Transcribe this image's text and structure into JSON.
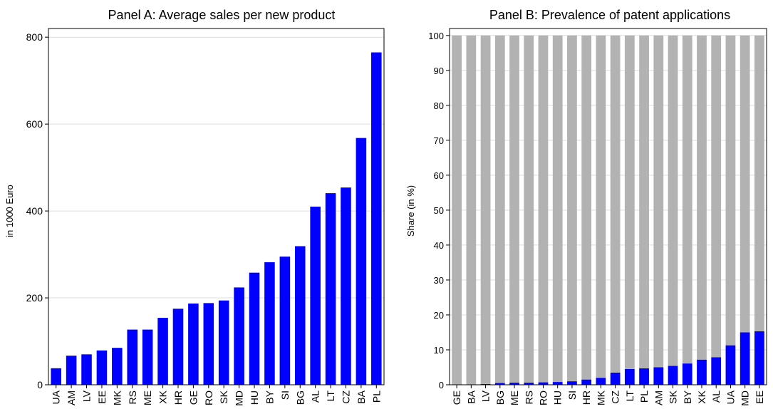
{
  "colors": {
    "bar": "#0000ff",
    "background_bar": "#b2b2b2",
    "grid": "#dedede",
    "axis": "#000000"
  },
  "chart_data": [
    {
      "type": "bar",
      "title": "Panel A: Average sales per new product",
      "xlabel": "",
      "ylabel": "in 1000 Euro",
      "ylim": [
        0,
        820
      ],
      "yticks": [
        0,
        200,
        400,
        600,
        800
      ],
      "grid": true,
      "categories": [
        "UA",
        "AM",
        "LV",
        "EE",
        "MK",
        "RS",
        "ME",
        "XK",
        "HR",
        "GE",
        "RO",
        "SK",
        "MD",
        "HU",
        "BY",
        "SI",
        "BG",
        "AL",
        "LT",
        "CZ",
        "BA",
        "PL"
      ],
      "values": [
        38,
        67,
        70,
        79,
        85,
        127,
        127,
        154,
        175,
        187,
        188,
        194,
        224,
        258,
        282,
        295,
        319,
        410,
        441,
        454,
        568,
        765
      ]
    },
    {
      "type": "bar",
      "title": "Panel B: Prevalence of patent applications",
      "xlabel": "",
      "ylabel": "Share (in %)",
      "ylim": [
        0,
        102
      ],
      "yticks": [
        0,
        10,
        20,
        30,
        40,
        50,
        60,
        70,
        80,
        90,
        100
      ],
      "grid": true,
      "stacked": true,
      "categories": [
        "GE",
        "BA",
        "LV",
        "BG",
        "ME",
        "RS",
        "RO",
        "HU",
        "SI",
        "HR",
        "MK",
        "CZ",
        "LT",
        "PL",
        "AM",
        "SK",
        "BY",
        "XK",
        "AL",
        "UA",
        "MD",
        "EE"
      ],
      "series": [
        {
          "values": [
            0.1,
            0.1,
            0.2,
            0.5,
            0.6,
            0.6,
            0.7,
            0.8,
            1.0,
            1.5,
            2.0,
            3.5,
            4.5,
            4.7,
            5.0,
            5.4,
            6.1,
            7.2,
            7.9,
            11.3,
            15.0,
            15.3
          ]
        },
        {
          "values": [
            99.9,
            99.9,
            99.8,
            99.5,
            99.4,
            99.4,
            99.3,
            99.2,
            99.0,
            98.5,
            98.0,
            96.5,
            95.5,
            95.3,
            95.0,
            94.6,
            93.9,
            92.8,
            92.1,
            88.7,
            85.0,
            84.7
          ]
        }
      ]
    }
  ]
}
